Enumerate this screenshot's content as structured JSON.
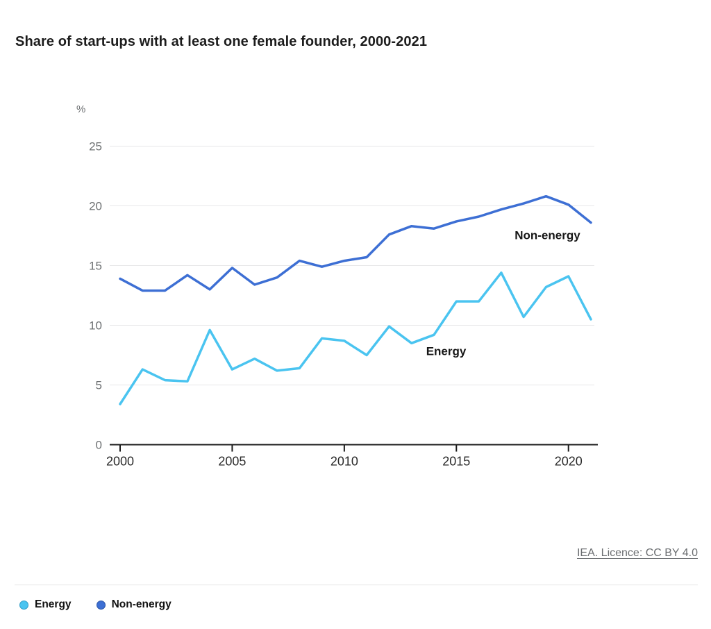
{
  "title": "Share of start-ups with at least one female founder, 2000-2021",
  "chart_data": {
    "type": "line",
    "title": "Share of start-ups with at least one female founder, 2000-2021",
    "ylabel": "%",
    "xlabel": "",
    "grid": true,
    "xlim": [
      2000,
      2021
    ],
    "ylim": [
      0,
      25
    ],
    "xticks": [
      2000,
      2005,
      2010,
      2015,
      2020
    ],
    "yticks": [
      0,
      5,
      10,
      15,
      20,
      25
    ],
    "x": [
      2000,
      2001,
      2002,
      2003,
      2004,
      2005,
      2006,
      2007,
      2008,
      2009,
      2010,
      2011,
      2012,
      2013,
      2014,
      2015,
      2016,
      2017,
      2018,
      2019,
      2020,
      2021
    ],
    "series": [
      {
        "name": "Energy",
        "color": "#4ac4f0",
        "values": [
          3.4,
          6.3,
          5.4,
          5.3,
          9.6,
          6.3,
          7.2,
          6.2,
          6.4,
          8.9,
          8.7,
          7.5,
          9.9,
          8.5,
          9.2,
          12.0,
          12.0,
          14.4,
          10.7,
          13.2,
          14.1,
          10.5
        ]
      },
      {
        "name": "Non-energy",
        "color": "#3d6fd4",
        "values": [
          13.9,
          12.9,
          12.9,
          14.2,
          13.0,
          14.8,
          13.4,
          14.0,
          15.4,
          14.9,
          15.4,
          15.7,
          17.6,
          18.3,
          18.1,
          18.7,
          19.1,
          19.7,
          20.2,
          20.8,
          20.1,
          18.6
        ]
      }
    ],
    "annotations": [
      {
        "text": "Energy",
        "year": 2013.65,
        "value": 7.5
      },
      {
        "text": "Non-energy",
        "year": 2017.6,
        "value": 17.2
      }
    ],
    "legend_position": "bottom-left"
  },
  "legend": {
    "items": [
      {
        "label": "Energy",
        "color": "#4ac4f0",
        "border": "#2f9cc7"
      },
      {
        "label": "Non-energy",
        "color": "#3d6fd4",
        "border": "#2c55a6"
      }
    ]
  },
  "footer": {
    "licence_text": "IEA. Licence: CC BY 4.0"
  },
  "colors": {
    "axis": "#1a1a1a",
    "gridline": "#e7e7e8",
    "y_tick_label": "#6e7173",
    "x_tick_label": "#2b2b2b",
    "annotation": "#161616",
    "title": "#1c1c1c",
    "licence": "#6b6e71"
  }
}
